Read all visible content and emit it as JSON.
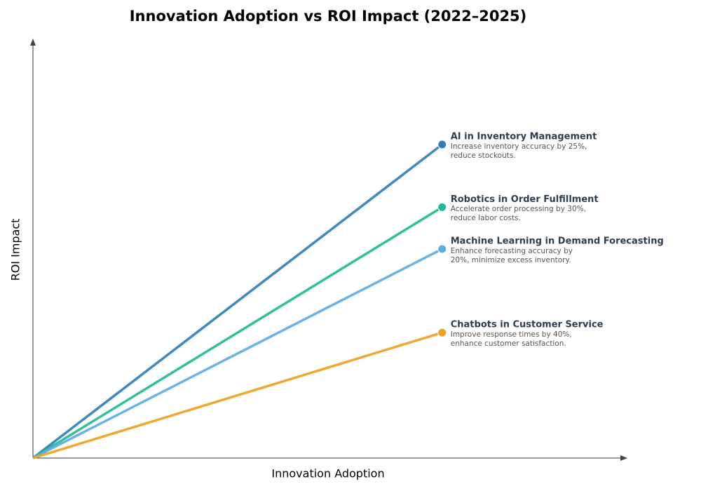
{
  "chart_data": {
    "type": "line",
    "title": "Innovation Adoption vs ROI Impact (2022–2025)",
    "x_label": "Innovation Adoption",
    "y_label": "ROI Impact",
    "xlim": [
      0,
      100
    ],
    "ylim": [
      0,
      100
    ],
    "series": [
      {
        "name": "AI in Inventory Management",
        "description": "Increase inventory accuracy by 25%, reduce stockouts.",
        "color": "#2e7fb8",
        "x": [
          0,
          69
        ],
        "values": [
          0,
          75
        ]
      },
      {
        "name": "Robotics in Order Fulfillment",
        "description": "Accelerate order processing by 30%, reduce labor costs.",
        "color": "#22b996",
        "x": [
          0,
          69
        ],
        "values": [
          0,
          60
        ]
      },
      {
        "name": "Machine Learning in Demand Forecasting",
        "description": "Enhance forecasting accuracy by 20%, minimize excess inventory.",
        "color": "#5dade2",
        "x": [
          0,
          69
        ],
        "values": [
          0,
          50
        ]
      },
      {
        "name": "Chatbots in Customer Service",
        "description": "Improve response times by 40%, enhance customer satisfaction.",
        "color": "#f0a020",
        "x": [
          0,
          69
        ],
        "values": [
          0,
          30
        ]
      }
    ]
  }
}
